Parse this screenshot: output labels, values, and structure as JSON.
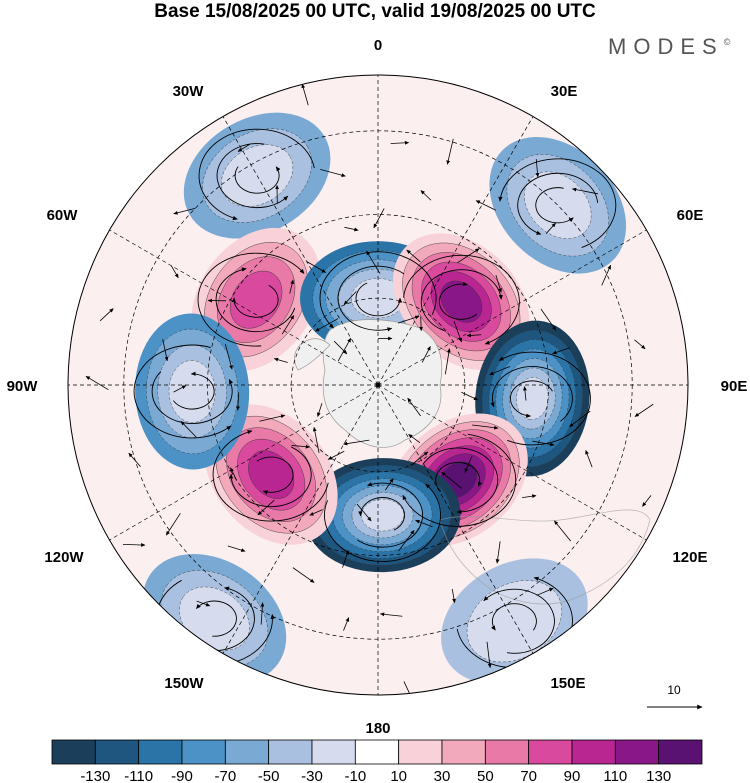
{
  "title": "Base 15/08/2025 00 UTC, valid 19/08/2025 00 UTC",
  "brand": "MODES",
  "brand_mark": "©",
  "projection": "south-polar-stereographic",
  "lon_labels": {
    "top": "0",
    "bottom": "180",
    "left": "90W",
    "right": "90E",
    "nw": "30W",
    "ne": "30E",
    "wnw": "60W",
    "ene": "60E",
    "wsw": "120W",
    "ese": "120E",
    "sw": "150W",
    "se": "150E"
  },
  "reference_vector": "10",
  "colorbar": {
    "labels": [
      "-130",
      "-110",
      "-90",
      "-70",
      "-50",
      "-30",
      "-10",
      "10",
      "30",
      "50",
      "70",
      "90",
      "110",
      "130"
    ],
    "colors": [
      "#1b3f5a",
      "#1e5680",
      "#2a74a8",
      "#4c92c6",
      "#7aa9d4",
      "#a9c0e0",
      "#d6dcee",
      "#ffffff",
      "#f8d2d8",
      "#f2a9bc",
      "#e97aa8",
      "#d94a9e",
      "#b92692",
      "#8a1788",
      "#5a1272"
    ]
  },
  "anomaly_centers": [
    {
      "lon_deg": -30,
      "colat": 0.78,
      "value": -50
    },
    {
      "lon_deg": 45,
      "colat": 0.82,
      "value": -50
    },
    {
      "lon_deg": -55,
      "colat": 0.48,
      "value": 70
    },
    {
      "lon_deg": 0,
      "colat": 0.28,
      "value": -90
    },
    {
      "lon_deg": 45,
      "colat": 0.38,
      "value": 110
    },
    {
      "lon_deg": 95,
      "colat": 0.5,
      "value": -130
    },
    {
      "lon_deg": 140,
      "colat": 0.4,
      "value": 130
    },
    {
      "lon_deg": 178,
      "colat": 0.42,
      "value": -130
    },
    {
      "lon_deg": -130,
      "colat": 0.45,
      "value": 90
    },
    {
      "lon_deg": -92,
      "colat": 0.6,
      "value": -70
    },
    {
      "lon_deg": -145,
      "colat": 0.92,
      "value": -50
    },
    {
      "lon_deg": 150,
      "colat": 0.88,
      "value": -30
    }
  ]
}
